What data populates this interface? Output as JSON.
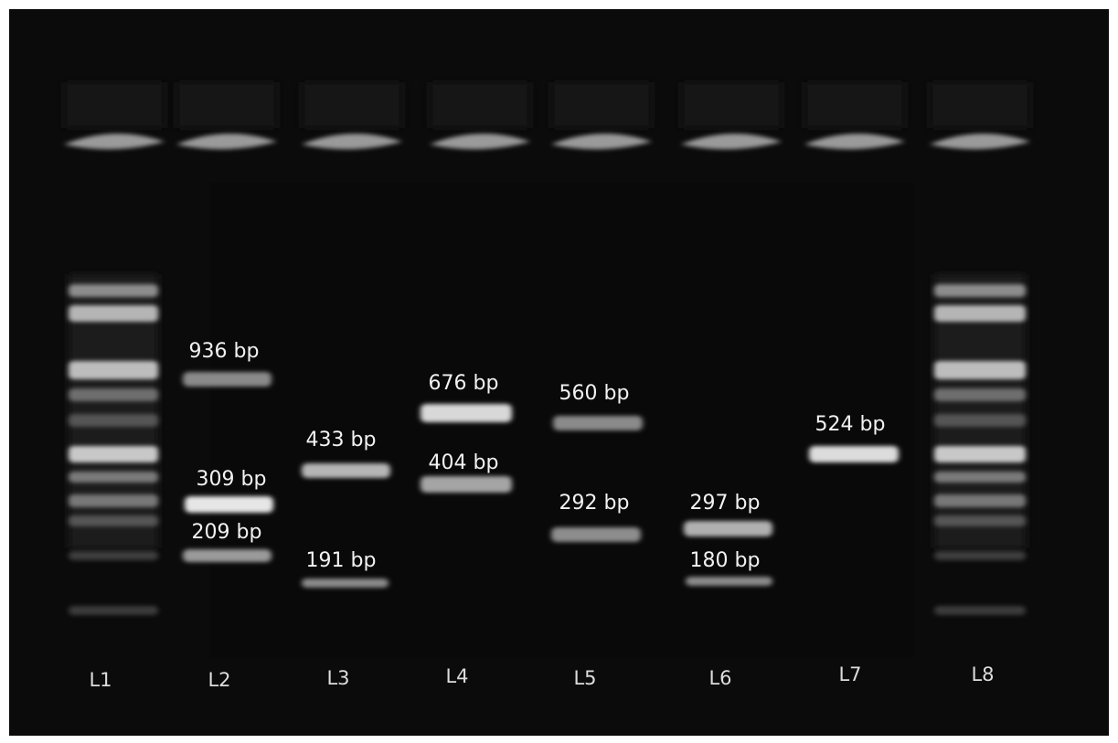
{
  "lanes": [
    {
      "label": "L1",
      "bands": []
    },
    {
      "label": "L2",
      "bands": [
        "936 bp",
        "309 bp",
        "209 bp"
      ]
    },
    {
      "label": "L3",
      "bands": [
        "433 bp",
        "191 bp"
      ]
    },
    {
      "label": "L4",
      "bands": [
        "676 bp",
        "404 bp"
      ]
    },
    {
      "label": "L5",
      "bands": [
        "560 bp",
        "292 bp"
      ]
    },
    {
      "label": "L6",
      "bands": [
        "297 bp",
        "180 bp"
      ]
    },
    {
      "label": "L7",
      "bands": [
        "524 bp"
      ]
    },
    {
      "label": "L8",
      "bands": []
    }
  ]
}
